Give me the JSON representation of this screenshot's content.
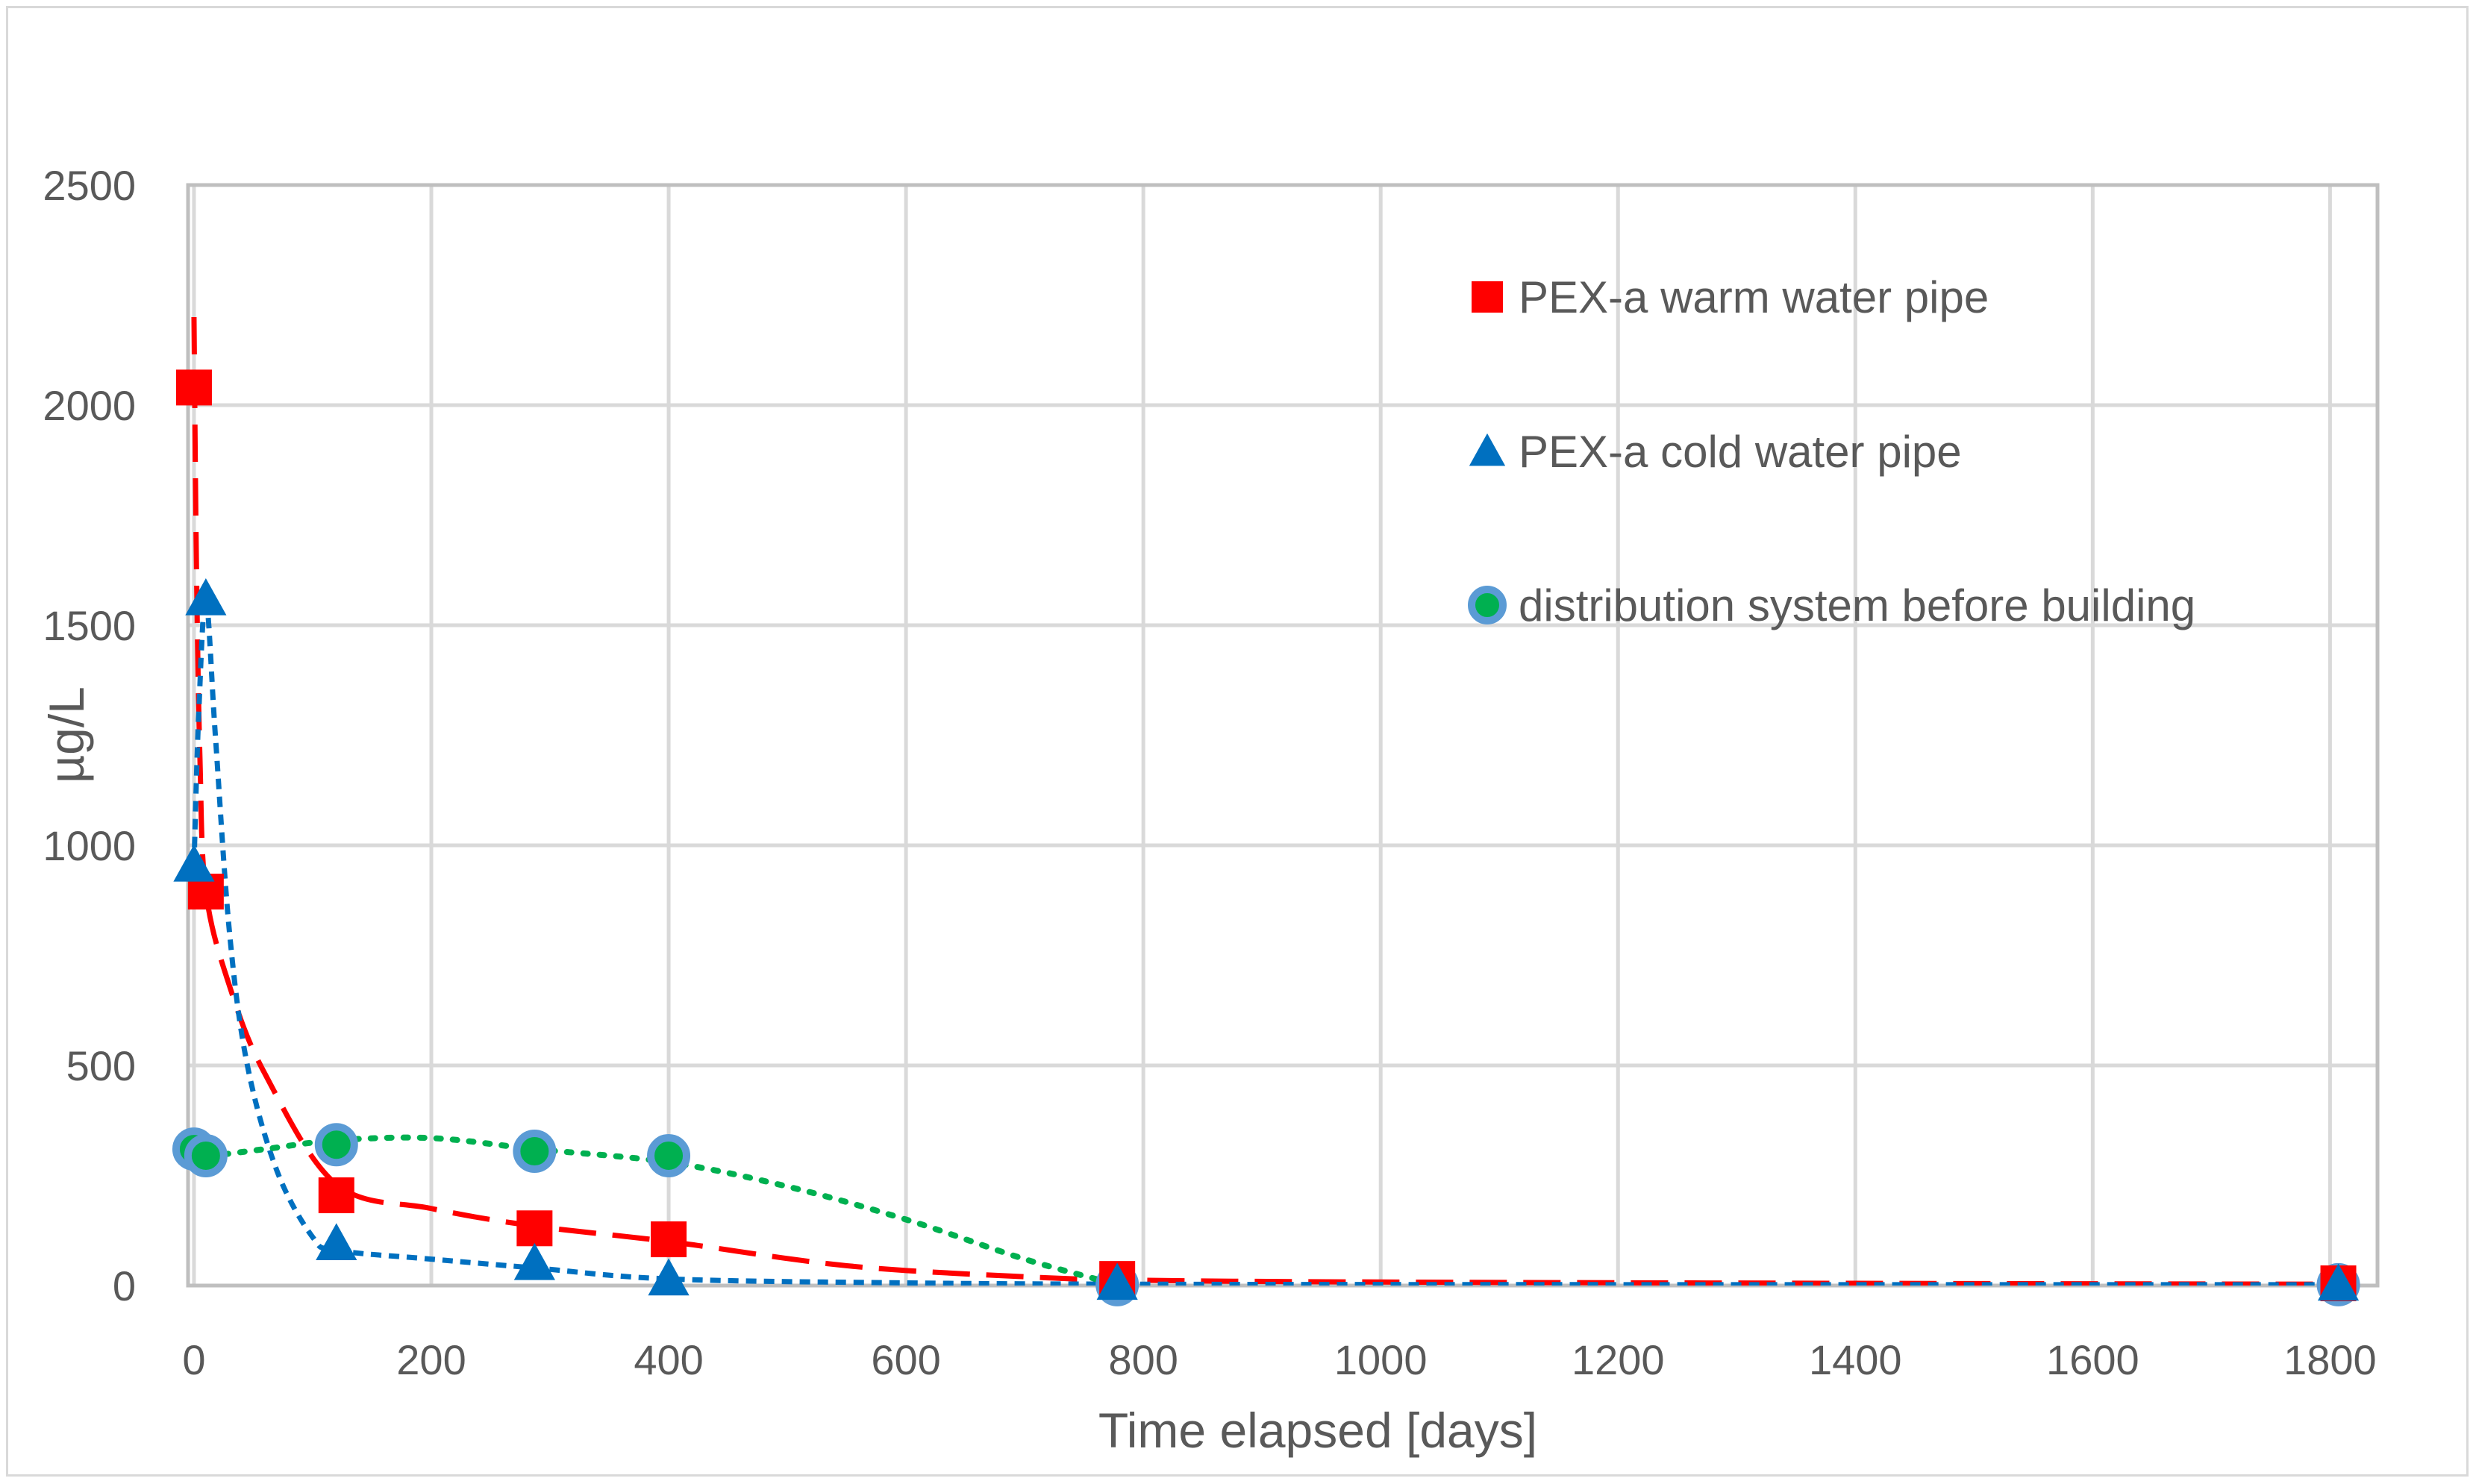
{
  "chart_data": {
    "type": "scatter",
    "title": "",
    "xlabel": "Time elapsed [days]",
    "ylabel": "µg/L",
    "xlim": [
      -5,
      1840
    ],
    "ylim": [
      0,
      2500
    ],
    "xticks": [
      0,
      200,
      400,
      600,
      800,
      1000,
      1200,
      1400,
      1600,
      1800
    ],
    "yticks": [
      0,
      500,
      1000,
      1500,
      2000,
      2500
    ],
    "grid": true,
    "legend_position": "top-right inside",
    "series": [
      {
        "name": "PEX-a warm water pipe",
        "marker": "square",
        "color": "#ff0000",
        "trendline": "dashed",
        "x": [
          0,
          10,
          120,
          287,
          400,
          778,
          1807
        ],
        "y": [
          2040,
          895,
          205,
          130,
          105,
          15,
          5
        ],
        "trend": [
          [
            0,
            2200
          ],
          [
            2,
            1650
          ],
          [
            5,
            1200
          ],
          [
            10,
            895
          ],
          [
            30,
            680
          ],
          [
            60,
            480
          ],
          [
            120,
            230
          ],
          [
            200,
            175
          ],
          [
            287,
            135
          ],
          [
            400,
            100
          ],
          [
            550,
            45
          ],
          [
            700,
            20
          ],
          [
            800,
            12
          ],
          [
            1000,
            8
          ],
          [
            1400,
            5
          ],
          [
            1807,
            3
          ]
        ]
      },
      {
        "name": "PEX-a cold water pipe",
        "marker": "triangle",
        "color": "#0070c0",
        "trendline": "dotted",
        "x": [
          0,
          10,
          120,
          287,
          400,
          778,
          1807
        ],
        "y": [
          955,
          1560,
          95,
          50,
          15,
          5,
          3
        ],
        "trend": [
          [
            0,
            955
          ],
          [
            4,
            1300
          ],
          [
            10,
            1560
          ],
          [
            18,
            1250
          ],
          [
            30,
            800
          ],
          [
            45,
            500
          ],
          [
            70,
            260
          ],
          [
            100,
            110
          ],
          [
            120,
            80
          ],
          [
            200,
            60
          ],
          [
            287,
            40
          ],
          [
            400,
            15
          ],
          [
            600,
            6
          ],
          [
            800,
            3
          ],
          [
            1200,
            2
          ],
          [
            1807,
            2
          ]
        ]
      },
      {
        "name": "distribution system before building",
        "marker": "circle",
        "color": "#00b050",
        "edge_color": "#5b9bd5",
        "trendline": "dotted",
        "x": [
          0,
          10,
          120,
          287,
          400,
          778,
          1807
        ],
        "y": [
          310,
          295,
          320,
          305,
          295,
          2,
          2
        ],
        "trend": [
          [
            0,
            310
          ],
          [
            10,
            295
          ],
          [
            60,
            310
          ],
          [
            120,
            330
          ],
          [
            200,
            335
          ],
          [
            287,
            310
          ],
          [
            400,
            280
          ],
          [
            500,
            225
          ],
          [
            600,
            150
          ],
          [
            700,
            60
          ],
          [
            778,
            2
          ]
        ]
      }
    ]
  }
}
